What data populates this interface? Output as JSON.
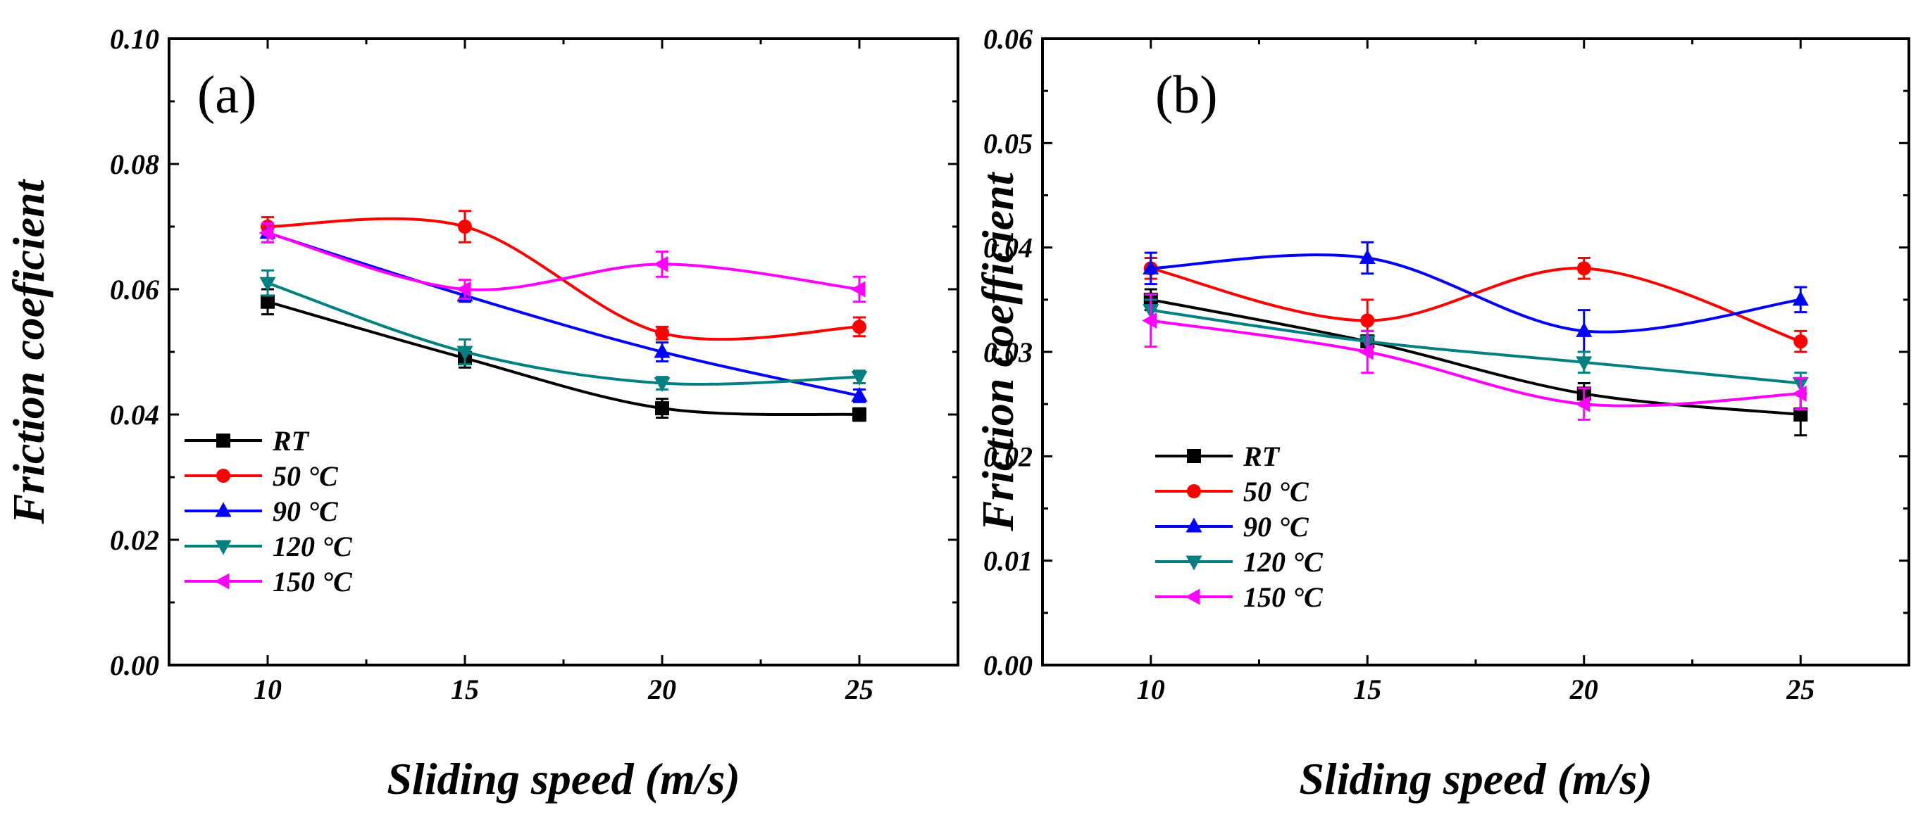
{
  "chart_data": [
    {
      "type": "line",
      "panel_label": "(a)",
      "xlabel": "Sliding speed (m/s)",
      "ylabel": "Friction coeficient",
      "x": [
        10,
        15,
        20,
        25
      ],
      "xlim": [
        7.5,
        27.5
      ],
      "ylim": [
        0,
        0.1
      ],
      "xticks": [
        "10",
        "15",
        "20",
        "25"
      ],
      "yticks": [
        "0.00",
        "0.02",
        "0.04",
        "0.06",
        "0.08",
        "0.10"
      ],
      "legend_position": "lower-left",
      "series": [
        {
          "name": "RT",
          "color": "#000000",
          "marker": "square",
          "values": [
            0.058,
            0.049,
            0.041,
            0.04
          ],
          "errors": [
            0.002,
            0.0015,
            0.0015,
            0.001
          ]
        },
        {
          "name": "50 °C",
          "color": "#ff0000",
          "marker": "circle",
          "values": [
            0.07,
            0.07,
            0.053,
            0.054
          ],
          "errors": [
            0.0015,
            0.0025,
            0.001,
            0.0015
          ]
        },
        {
          "name": "90 °C",
          "color": "#0000ff",
          "marker": "triangle-up",
          "values": [
            0.069,
            0.059,
            0.05,
            0.043
          ],
          "errors": [
            0.0015,
            0.001,
            0.0015,
            0.001
          ]
        },
        {
          "name": "120 °C",
          "color": "#008080",
          "marker": "triangle-down",
          "values": [
            0.061,
            0.05,
            0.045,
            0.046
          ],
          "errors": [
            0.002,
            0.002,
            0.001,
            0.001
          ]
        },
        {
          "name": "150 °C",
          "color": "#ff00ff",
          "marker": "triangle-left",
          "values": [
            0.069,
            0.06,
            0.064,
            0.06
          ],
          "errors": [
            0.0015,
            0.0015,
            0.002,
            0.002
          ]
        }
      ]
    },
    {
      "type": "line",
      "panel_label": "(b)",
      "xlabel": "Sliding speed (m/s)",
      "ylabel": "Friction coefficient",
      "x": [
        10,
        15,
        20,
        25
      ],
      "xlim": [
        7.5,
        27.5
      ],
      "ylim": [
        0,
        0.06
      ],
      "xticks": [
        "10",
        "15",
        "20",
        "25"
      ],
      "yticks": [
        "0.00",
        "0.01",
        "0.02",
        "0.03",
        "0.04",
        "0.05",
        "0.06"
      ],
      "legend_position": "lower-left",
      "series": [
        {
          "name": "RT",
          "color": "#000000",
          "marker": "square",
          "values": [
            0.035,
            0.031,
            0.026,
            0.024
          ],
          "errors": [
            0.001,
            0.001,
            0.001,
            0.002
          ]
        },
        {
          "name": "50 °C",
          "color": "#ff0000",
          "marker": "circle",
          "values": [
            0.038,
            0.033,
            0.038,
            0.031
          ],
          "errors": [
            0.001,
            0.002,
            0.001,
            0.001
          ]
        },
        {
          "name": "90 °C",
          "color": "#0000ff",
          "marker": "triangle-up",
          "values": [
            0.038,
            0.039,
            0.032,
            0.035
          ],
          "errors": [
            0.0015,
            0.0015,
            0.002,
            0.0012
          ]
        },
        {
          "name": "120 °C",
          "color": "#008080",
          "marker": "triangle-down",
          "values": [
            0.034,
            0.031,
            0.029,
            0.027
          ],
          "errors": [
            0.001,
            0.001,
            0.001,
            0.001
          ]
        },
        {
          "name": "150 °C",
          "color": "#ff00ff",
          "marker": "triangle-left",
          "values": [
            0.033,
            0.03,
            0.025,
            0.026
          ],
          "errors": [
            0.0025,
            0.002,
            0.0015,
            0.0015
          ]
        }
      ]
    }
  ]
}
